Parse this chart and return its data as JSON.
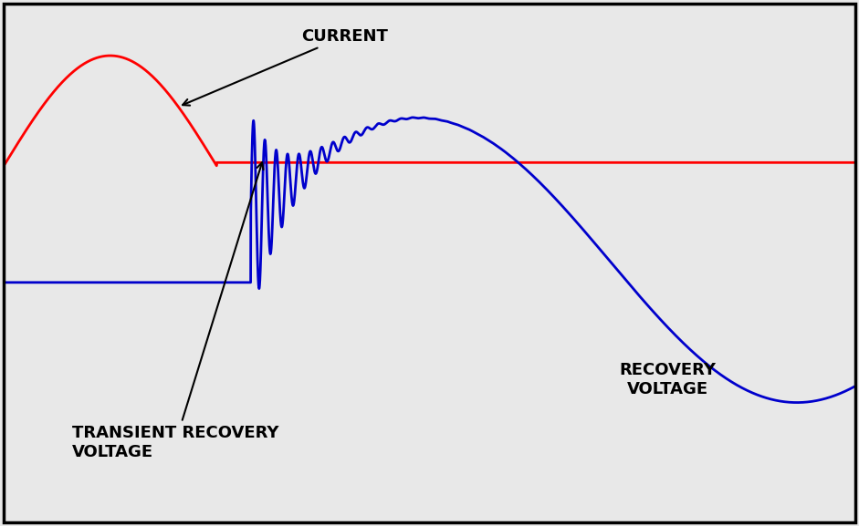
{
  "background_color": "#e8e8e8",
  "border_color": "#000000",
  "current_color": "#ff0000",
  "voltage_color": "#0000cc",
  "current_label": "CURRENT",
  "trv_label": "TRANSIENT RECOVERY\nVOLTAGE",
  "rv_label": "RECOVERY\nVOLTAGE",
  "label_fontsize": 13,
  "label_fontweight": "bold",
  "fig_width": 9.41,
  "fig_height": 5.77,
  "dpi": 100
}
